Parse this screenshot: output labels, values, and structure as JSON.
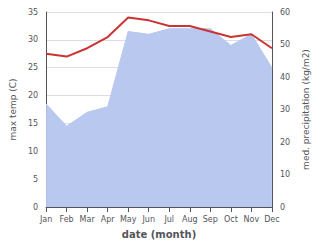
{
  "chart_data": {
    "type": "line",
    "categories": [
      "Jan",
      "Feb",
      "Mar",
      "Apr",
      "May",
      "Jun",
      "Jul",
      "Aug",
      "Sep",
      "Oct",
      "Nov",
      "Dec"
    ],
    "series": [
      {
        "type": "area",
        "color": "#b8c8ee",
        "values": [
          18.5,
          14.5,
          17.0,
          18.0,
          31.5,
          31.0,
          32.0,
          32.0,
          32.0,
          29.0,
          31.0,
          25.0
        ]
      },
      {
        "type": "line",
        "color": "#cc3333",
        "values": [
          27.5,
          27.0,
          28.5,
          30.5,
          34.0,
          33.5,
          32.5,
          32.5,
          31.5,
          30.5,
          31.0,
          28.5
        ]
      }
    ],
    "xlabel": "date (month)",
    "ylabel": "max temp (C)",
    "y2label": "med. precipitation (kg/m2)",
    "ylim": [
      0,
      35
    ],
    "yticks": [
      0,
      5,
      10,
      15,
      20,
      25,
      30,
      35
    ],
    "y2lim": [
      0,
      60
    ],
    "y2ticks": [
      0,
      10,
      20,
      30,
      40,
      50,
      60
    ],
    "grid": true
  }
}
